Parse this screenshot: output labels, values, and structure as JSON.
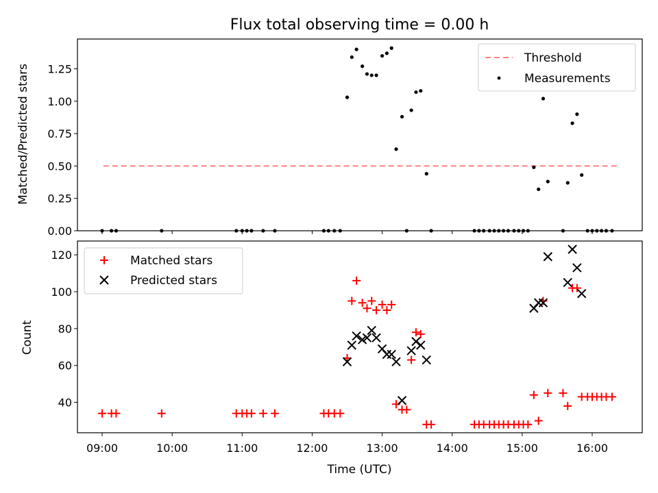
{
  "chart_data": [
    {
      "type": "scatter",
      "title": "Flux total observing time = 0.00 h",
      "xlabel": "",
      "ylabel": "Matched/Predicted stars",
      "ylim": [
        0,
        1.48
      ],
      "yticks": [
        "0.00",
        "0.25",
        "0.50",
        "0.75",
        "1.00",
        "1.25"
      ],
      "threshold": {
        "name": "Threshold",
        "value": 0.5,
        "x_start": "09:01",
        "x_end": "16:22",
        "color": "#ff7f7f"
      },
      "legend_position": "top-right",
      "series": [
        {
          "name": "Measurements",
          "color": "#000000",
          "points": [
            [
              "09:00",
              0
            ],
            [
              "09:08",
              0
            ],
            [
              "09:12",
              0
            ],
            [
              "09:51",
              0
            ],
            [
              "10:55",
              0
            ],
            [
              "11:00",
              0
            ],
            [
              "11:04",
              0
            ],
            [
              "11:08",
              0
            ],
            [
              "11:18",
              0
            ],
            [
              "11:28",
              0
            ],
            [
              "12:10",
              0
            ],
            [
              "12:14",
              0
            ],
            [
              "12:19",
              0
            ],
            [
              "12:24",
              0
            ],
            [
              "12:30",
              1.03
            ],
            [
              "12:34",
              1.34
            ],
            [
              "12:38",
              1.4
            ],
            [
              "12:43",
              1.27
            ],
            [
              "12:47",
              1.21
            ],
            [
              "12:51",
              1.2
            ],
            [
              "12:55",
              1.2
            ],
            [
              "13:00",
              1.35
            ],
            [
              "13:04",
              1.37
            ],
            [
              "13:08",
              1.41
            ],
            [
              "13:12",
              0.63
            ],
            [
              "13:17",
              0.88
            ],
            [
              "13:21",
              0
            ],
            [
              "13:25",
              0.93
            ],
            [
              "13:29",
              1.07
            ],
            [
              "13:33",
              1.08
            ],
            [
              "13:38",
              0.44
            ],
            [
              "13:42",
              0
            ],
            [
              "14:19",
              0
            ],
            [
              "14:23",
              0
            ],
            [
              "14:27",
              0
            ],
            [
              "14:32",
              0
            ],
            [
              "14:36",
              0
            ],
            [
              "14:40",
              0
            ],
            [
              "14:44",
              0
            ],
            [
              "14:48",
              0
            ],
            [
              "14:53",
              0
            ],
            [
              "14:57",
              0
            ],
            [
              "15:01",
              0
            ],
            [
              "15:05",
              0
            ],
            [
              "15:10",
              0.49
            ],
            [
              "15:14",
              0.32
            ],
            [
              "15:18",
              1.02
            ],
            [
              "15:22",
              0.38
            ],
            [
              "15:35",
              0
            ],
            [
              "15:39",
              0.37
            ],
            [
              "15:43",
              0.83
            ],
            [
              "15:47",
              0.9
            ],
            [
              "15:51",
              0.43
            ],
            [
              "15:56",
              0
            ],
            [
              "16:00",
              0
            ],
            [
              "16:04",
              0
            ],
            [
              "16:08",
              0
            ],
            [
              "16:12",
              0
            ],
            [
              "16:17",
              0
            ]
          ]
        }
      ]
    },
    {
      "type": "scatter",
      "title": "",
      "xlabel": "Time (UTC)",
      "ylabel": "Count",
      "ylim": [
        23.5,
        127.5
      ],
      "yticks": [
        "40",
        "60",
        "80",
        "100",
        "120"
      ],
      "xticks": [
        "09:00",
        "10:00",
        "11:00",
        "12:00",
        "13:00",
        "14:00",
        "15:00",
        "16:00"
      ],
      "legend_position": "top-left",
      "series": [
        {
          "name": "Matched stars",
          "color": "#ff0000",
          "marker": "+",
          "points": [
            [
              "09:00",
              34
            ],
            [
              "09:08",
              34
            ],
            [
              "09:12",
              34
            ],
            [
              "09:51",
              34
            ],
            [
              "10:55",
              34
            ],
            [
              "11:00",
              34
            ],
            [
              "11:04",
              34
            ],
            [
              "11:08",
              34
            ],
            [
              "11:18",
              34
            ],
            [
              "11:28",
              34
            ],
            [
              "12:10",
              34
            ],
            [
              "12:14",
              34
            ],
            [
              "12:19",
              34
            ],
            [
              "12:24",
              34
            ],
            [
              "12:30",
              64
            ],
            [
              "12:34",
              95
            ],
            [
              "12:38",
              106
            ],
            [
              "12:43",
              94
            ],
            [
              "12:47",
              91
            ],
            [
              "12:51",
              95
            ],
            [
              "12:55",
              90
            ],
            [
              "13:00",
              93
            ],
            [
              "13:04",
              90
            ],
            [
              "13:08",
              93
            ],
            [
              "13:12",
              39
            ],
            [
              "13:17",
              36
            ],
            [
              "13:21",
              36
            ],
            [
              "13:25",
              63
            ],
            [
              "13:29",
              78
            ],
            [
              "13:33",
              77
            ],
            [
              "13:38",
              28
            ],
            [
              "13:42",
              28
            ],
            [
              "14:19",
              28
            ],
            [
              "14:23",
              28
            ],
            [
              "14:27",
              28
            ],
            [
              "14:32",
              28
            ],
            [
              "14:36",
              28
            ],
            [
              "14:40",
              28
            ],
            [
              "14:44",
              28
            ],
            [
              "14:48",
              28
            ],
            [
              "14:53",
              28
            ],
            [
              "14:57",
              28
            ],
            [
              "15:01",
              28
            ],
            [
              "15:05",
              28
            ],
            [
              "15:10",
              44
            ],
            [
              "15:14",
              30
            ],
            [
              "15:18",
              95
            ],
            [
              "15:22",
              45
            ],
            [
              "15:35",
              45
            ],
            [
              "15:39",
              38
            ],
            [
              "15:43",
              102
            ],
            [
              "15:47",
              102
            ],
            [
              "15:51",
              43
            ],
            [
              "15:56",
              43
            ],
            [
              "16:00",
              43
            ],
            [
              "16:04",
              43
            ],
            [
              "16:08",
              43
            ],
            [
              "16:12",
              43
            ],
            [
              "16:17",
              43
            ]
          ]
        },
        {
          "name": "Predicted stars",
          "color": "#000000",
          "marker": "x",
          "points": [
            [
              "12:30",
              62
            ],
            [
              "12:34",
              71
            ],
            [
              "12:38",
              76
            ],
            [
              "12:43",
              74
            ],
            [
              "12:47",
              75
            ],
            [
              "12:51",
              79
            ],
            [
              "12:55",
              75
            ],
            [
              "13:00",
              69
            ],
            [
              "13:04",
              66
            ],
            [
              "13:08",
              66
            ],
            [
              "13:12",
              62
            ],
            [
              "13:17",
              41
            ],
            [
              "13:25",
              68
            ],
            [
              "13:29",
              73
            ],
            [
              "13:33",
              71
            ],
            [
              "13:38",
              63
            ],
            [
              "15:10",
              91
            ],
            [
              "15:14",
              94
            ],
            [
              "15:18",
              94
            ],
            [
              "15:22",
              119
            ],
            [
              "15:39",
              105
            ],
            [
              "15:43",
              123
            ],
            [
              "15:47",
              113
            ],
            [
              "15:51",
              99
            ]
          ]
        }
      ]
    }
  ]
}
